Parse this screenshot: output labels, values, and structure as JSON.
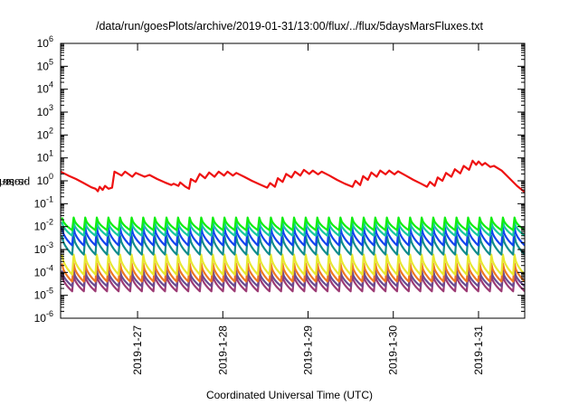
{
  "chart_data": {
    "type": "line",
    "title": "/data/run/goesPlots/archive/2019-01-31/13:00/flux/../flux/5daysMarsFluxes.txt",
    "xlabel": "Coordinated Universal Time (UTC)",
    "ylabel": "protons/cm²-s-sr-MeV",
    "ylabel_parts": {
      "pre": "protons/cm",
      "sup": "2",
      "post": "-s-sr-MeV"
    },
    "yscale": "log",
    "ylim": [
      1e-06,
      1000000.0
    ],
    "y_ticks": [
      {
        "value": 1e-06,
        "base": "10",
        "exp": "-6"
      },
      {
        "value": 1e-05,
        "base": "10",
        "exp": "-5"
      },
      {
        "value": 0.0001,
        "base": "10",
        "exp": "-4"
      },
      {
        "value": 0.001,
        "base": "10",
        "exp": "-3"
      },
      {
        "value": 0.01,
        "base": "10",
        "exp": "-2"
      },
      {
        "value": 0.1,
        "base": "10",
        "exp": "-1"
      },
      {
        "value": 1,
        "base": "10",
        "exp": "0"
      },
      {
        "value": 10,
        "base": "10",
        "exp": "1"
      },
      {
        "value": 100,
        "base": "10",
        "exp": "2"
      },
      {
        "value": 1000,
        "base": "10",
        "exp": "3"
      },
      {
        "value": 10000,
        "base": "10",
        "exp": "4"
      },
      {
        "value": 100000,
        "base": "10",
        "exp": "5"
      },
      {
        "value": 1000000,
        "base": "10",
        "exp": "6"
      }
    ],
    "x_range_days": [
      "2019-01-26T02:20",
      "2019-01-31T13:00"
    ],
    "x_ticks": [
      {
        "label": "2019-1-27",
        "date": "2019-01-27T00:00"
      },
      {
        "label": "2019-1-28",
        "date": "2019-01-28T00:00"
      },
      {
        "label": "2019-1-29",
        "date": "2019-01-29T00:00"
      },
      {
        "label": "2019-1-30",
        "date": "2019-01-30T00:00"
      },
      {
        "label": "2019-1-31",
        "date": "2019-01-31T00:00"
      }
    ],
    "grid": false,
    "legend": "none",
    "series": [
      {
        "color": "#ee1111",
        "style": "sawtooth-smooth",
        "points": [
          [
            "2019-01-26T02:20",
            2.5
          ],
          [
            "2019-01-26T04:30",
            1.7
          ],
          [
            "2019-01-26T06:40",
            1.2
          ],
          [
            "2019-01-26T08:50",
            0.8
          ],
          [
            "2019-01-26T11:00",
            0.52
          ],
          [
            "2019-01-26T12:10",
            0.45
          ],
          [
            "2019-01-26T12:50",
            0.35
          ],
          [
            "2019-01-26T13:20",
            0.55
          ],
          [
            "2019-01-26T14:10",
            0.4
          ],
          [
            "2019-01-26T14:50",
            0.6
          ],
          [
            "2019-01-26T15:50",
            0.45
          ],
          [
            "2019-01-26T16:50",
            0.5
          ],
          [
            "2019-01-26T17:30",
            2.5
          ],
          [
            "2019-01-26T19:30",
            1.7
          ],
          [
            "2019-01-26T20:30",
            2.5
          ],
          [
            "2019-01-26T22:30",
            1.5
          ],
          [
            "2019-01-26T23:30",
            2.2
          ],
          [
            "2019-01-27T02:00",
            1.5
          ],
          [
            "2019-01-27T03:20",
            1.8
          ],
          [
            "2019-01-27T05:30",
            1.2
          ],
          [
            "2019-01-27T07:40",
            0.85
          ],
          [
            "2019-01-27T09:30",
            0.65
          ],
          [
            "2019-01-27T10:10",
            0.75
          ],
          [
            "2019-01-27T11:30",
            0.6
          ],
          [
            "2019-01-27T12:00",
            0.85
          ],
          [
            "2019-01-27T13:30",
            0.55
          ],
          [
            "2019-01-27T14:30",
            0.45
          ],
          [
            "2019-01-27T15:00",
            1.2
          ],
          [
            "2019-01-27T16:20",
            0.9
          ],
          [
            "2019-01-27T17:30",
            2.0
          ],
          [
            "2019-01-27T19:00",
            1.3
          ],
          [
            "2019-01-27T20:10",
            2.3
          ],
          [
            "2019-01-27T21:40",
            1.5
          ],
          [
            "2019-01-27T22:50",
            2.5
          ],
          [
            "2019-01-28T00:20",
            1.7
          ],
          [
            "2019-01-28T01:20",
            2.5
          ],
          [
            "2019-01-28T02:50",
            1.7
          ],
          [
            "2019-01-28T03:50",
            2.2
          ],
          [
            "2019-01-28T06:00",
            1.5
          ],
          [
            "2019-01-28T08:10",
            1.0
          ],
          [
            "2019-01-28T10:20",
            0.7
          ],
          [
            "2019-01-28T12:30",
            0.5
          ],
          [
            "2019-01-28T13:20",
            0.8
          ],
          [
            "2019-01-28T14:40",
            0.55
          ],
          [
            "2019-01-28T15:30",
            1.3
          ],
          [
            "2019-01-28T16:50",
            0.9
          ],
          [
            "2019-01-28T17:50",
            2.0
          ],
          [
            "2019-01-28T19:20",
            1.4
          ],
          [
            "2019-01-28T20:20",
            2.5
          ],
          [
            "2019-01-28T21:50",
            1.7
          ],
          [
            "2019-01-28T22:50",
            3.0
          ],
          [
            "2019-01-29T00:20",
            2.0
          ],
          [
            "2019-01-29T01:20",
            2.8
          ],
          [
            "2019-01-29T02:50",
            1.9
          ],
          [
            "2019-01-29T03:50",
            2.5
          ],
          [
            "2019-01-29T06:00",
            1.7
          ],
          [
            "2019-01-29T08:10",
            1.1
          ],
          [
            "2019-01-29T10:20",
            0.75
          ],
          [
            "2019-01-29T12:30",
            0.55
          ],
          [
            "2019-01-29T13:20",
            1.0
          ],
          [
            "2019-01-29T14:40",
            0.65
          ],
          [
            "2019-01-29T15:30",
            1.6
          ],
          [
            "2019-01-29T16:50",
            1.1
          ],
          [
            "2019-01-29T17:50",
            2.3
          ],
          [
            "2019-01-29T19:20",
            1.5
          ],
          [
            "2019-01-29T20:20",
            2.8
          ],
          [
            "2019-01-29T21:50",
            1.9
          ],
          [
            "2019-01-29T22:50",
            2.8
          ],
          [
            "2019-01-30T00:20",
            1.9
          ],
          [
            "2019-01-30T01:20",
            2.6
          ],
          [
            "2019-01-30T03:30",
            1.7
          ],
          [
            "2019-01-30T05:40",
            1.1
          ],
          [
            "2019-01-30T07:50",
            0.75
          ],
          [
            "2019-01-30T09:30",
            0.55
          ],
          [
            "2019-01-30T10:20",
            0.9
          ],
          [
            "2019-01-30T11:40",
            0.6
          ],
          [
            "2019-01-30T12:30",
            1.4
          ],
          [
            "2019-01-30T13:50",
            1.0
          ],
          [
            "2019-01-30T14:50",
            2.2
          ],
          [
            "2019-01-30T16:20",
            1.5
          ],
          [
            "2019-01-30T17:20",
            3.2
          ],
          [
            "2019-01-30T18:50",
            2.1
          ],
          [
            "2019-01-30T19:50",
            4.5
          ],
          [
            "2019-01-30T21:20",
            3.0
          ],
          [
            "2019-01-30T22:20",
            7.5
          ],
          [
            "2019-01-30T23:20",
            5.0
          ],
          [
            "2019-01-31T00:00",
            7.0
          ],
          [
            "2019-01-31T01:00",
            4.8
          ],
          [
            "2019-01-31T01:50",
            6.0
          ],
          [
            "2019-01-31T03:20",
            4.0
          ],
          [
            "2019-01-31T04:20",
            4.5
          ],
          [
            "2019-01-31T06:30",
            2.8
          ],
          [
            "2019-01-31T08:40",
            1.3
          ],
          [
            "2019-01-31T10:50",
            0.6
          ],
          [
            "2019-01-31T13:00",
            0.32
          ]
        ]
      },
      {
        "color": "#11ee11",
        "style": "sawtooth",
        "peak": 0.025,
        "trough": 0.007
      },
      {
        "color": "#14c8a0",
        "style": "sawtooth",
        "peak": 0.016,
        "trough": 0.004
      },
      {
        "color": "#1144ee",
        "style": "sawtooth",
        "peak": 0.009,
        "trough": 0.0015
      },
      {
        "color": "#108c8c",
        "style": "sawtooth",
        "peak": 0.004,
        "trough": 0.0006
      },
      {
        "color": "#e8e830",
        "style": "sawtooth",
        "peak": 0.0006,
        "trough": 8e-05
      },
      {
        "color": "#ee7722",
        "style": "sawtooth",
        "peak": 0.00025,
        "trough": 4e-05
      },
      {
        "color": "#6a4c92",
        "style": "sawtooth",
        "peak": 0.00012,
        "trough": 2.5e-05
      },
      {
        "color": "#9c3a74",
        "style": "sawtooth",
        "peak": 8e-05,
        "trough": 1.5e-05
      }
    ],
    "sawtooth_cycles": 40
  }
}
